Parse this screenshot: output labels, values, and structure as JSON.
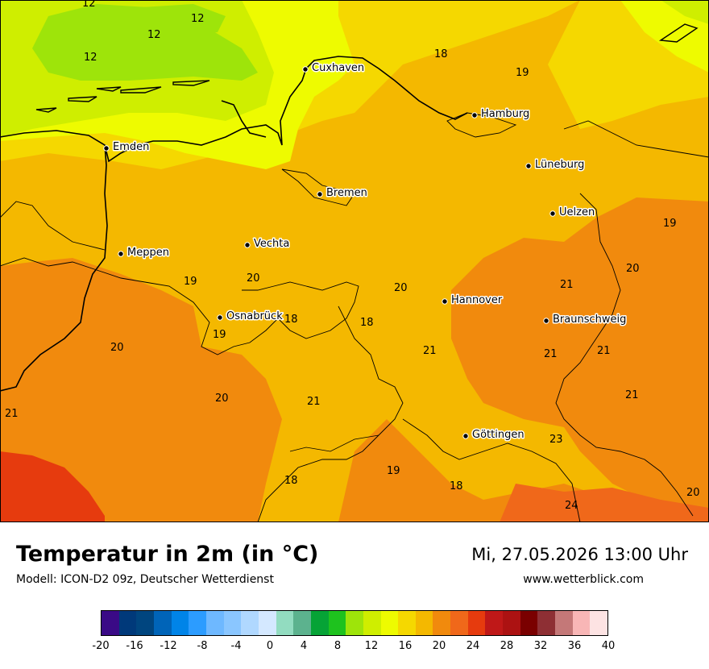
{
  "title": "Temperatur in 2m (in °C)",
  "subtitle": "Modell: ICON-D2 09z, Deutscher Wetterdienst",
  "datetime": "Mi, 27.05.2026 13:00 Uhr",
  "website": "www.wetterblick.com",
  "map": {
    "cities": [
      {
        "name": "Cuxhaven"
      },
      {
        "name": "Hamburg"
      },
      {
        "name": "Emden"
      },
      {
        "name": "Lüneburg"
      },
      {
        "name": "Bremen"
      },
      {
        "name": "Uelzen"
      },
      {
        "name": "Meppen"
      },
      {
        "name": "Vechta"
      },
      {
        "name": "Hannover"
      },
      {
        "name": "Osnabrück"
      },
      {
        "name": "Braunschweig"
      },
      {
        "name": "Göttingen"
      }
    ],
    "temperature_labels": [
      {
        "value": "12"
      },
      {
        "value": "12"
      },
      {
        "value": "12"
      },
      {
        "value": "12"
      },
      {
        "value": "18"
      },
      {
        "value": "19"
      },
      {
        "value": "19"
      },
      {
        "value": "20"
      },
      {
        "value": "19"
      },
      {
        "value": "20"
      },
      {
        "value": "20"
      },
      {
        "value": "21"
      },
      {
        "value": "18"
      },
      {
        "value": "18"
      },
      {
        "value": "19"
      },
      {
        "value": "20"
      },
      {
        "value": "21"
      },
      {
        "value": "21"
      },
      {
        "value": "21"
      },
      {
        "value": "20"
      },
      {
        "value": "21"
      },
      {
        "value": "21"
      },
      {
        "value": "21"
      },
      {
        "value": "23"
      },
      {
        "value": "19"
      },
      {
        "value": "18"
      },
      {
        "value": "18"
      },
      {
        "value": "24"
      },
      {
        "value": "20"
      }
    ]
  },
  "legend": {
    "colors": [
      "#3a0a86",
      "#00397a",
      "#00457f",
      "#0064b8",
      "#0084e8",
      "#2c9cff",
      "#6eb8ff",
      "#8ac6ff",
      "#b0d8ff",
      "#d4e8ff",
      "#92dcc0",
      "#5cb28e",
      "#06a336",
      "#1ec21e",
      "#9ee40a",
      "#cfee00",
      "#eefb00",
      "#f5d800",
      "#f4b800",
      "#f18a0d",
      "#f0681a",
      "#e63b0e",
      "#bf1818",
      "#ac1212",
      "#7a0000",
      "#8e2f34",
      "#c47878",
      "#f8b6b6",
      "#fde3e3"
    ],
    "ticks": [
      "-20",
      "-16",
      "-12",
      "-8",
      "-4",
      "0",
      "4",
      "8",
      "12",
      "16",
      "20",
      "24",
      "28",
      "32",
      "36",
      "40"
    ]
  }
}
